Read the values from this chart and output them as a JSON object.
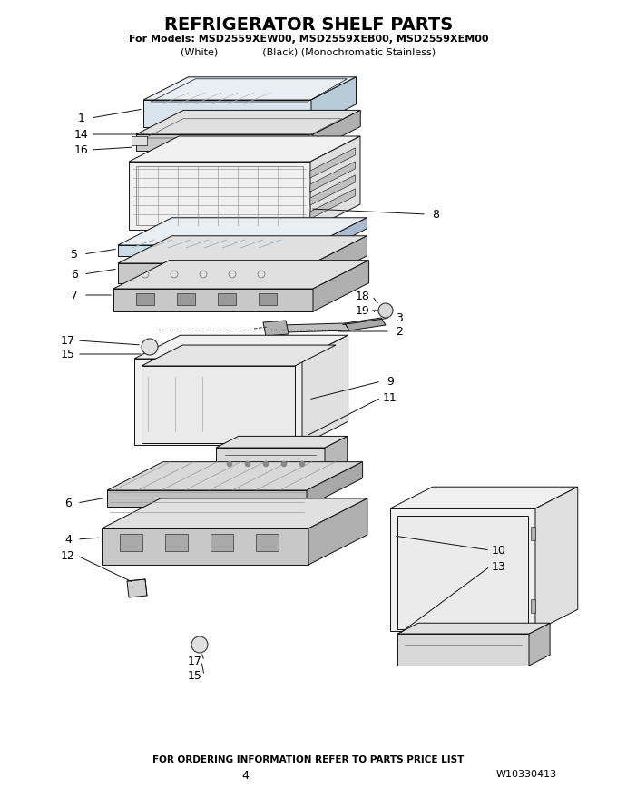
{
  "title": "REFRIGERATOR SHELF PARTS",
  "subtitle1": "For Models: MSD2559XEW00, MSD2559XEB00, MSD2559XEM00",
  "subtitle2": "(White)              (Black) (Monochromatic Stainless)",
  "footer1": "FOR ORDERING INFORMATION REFER TO PARTS PRICE LIST",
  "footer2": "4",
  "footer3": "W10330413",
  "bg_color": "#ffffff"
}
